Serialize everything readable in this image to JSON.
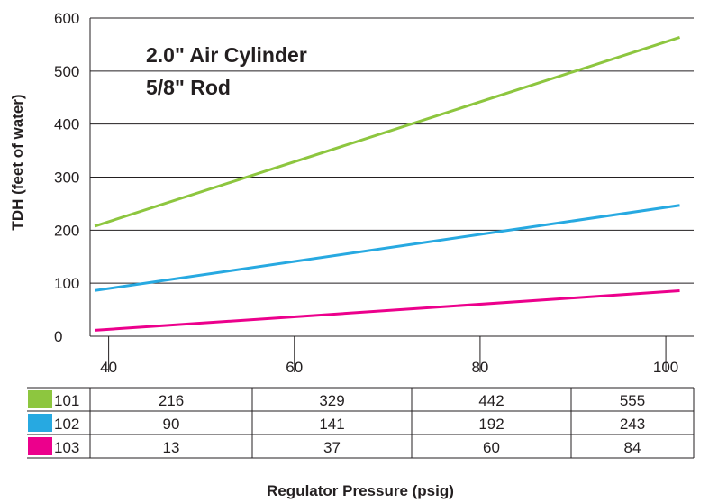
{
  "chart_data": {
    "type": "line",
    "title_lines": [
      "2.0\" Air Cylinder",
      "5/8\" Rod"
    ],
    "xlabel": "Regulator Pressure (psig)",
    "ylabel": "TDH (feet of water)",
    "x": [
      40,
      60,
      80,
      100
    ],
    "x_ticks": [
      "40",
      "60",
      "80",
      "100"
    ],
    "xlim": [
      38,
      103
    ],
    "ylim": [
      0,
      600
    ],
    "y_ticks": [
      "0",
      "100",
      "200",
      "300",
      "400",
      "500",
      "600"
    ],
    "grid": "horizontal",
    "legend": "table below chart",
    "series": [
      {
        "name": "101",
        "color": "#8dc63f",
        "values": [
          216,
          329,
          442,
          555
        ]
      },
      {
        "name": "102",
        "color": "#27a9e1",
        "values": [
          90,
          141,
          192,
          243
        ]
      },
      {
        "name": "103",
        "color": "#ec008c",
        "values": [
          13,
          37,
          60,
          84
        ]
      }
    ]
  }
}
